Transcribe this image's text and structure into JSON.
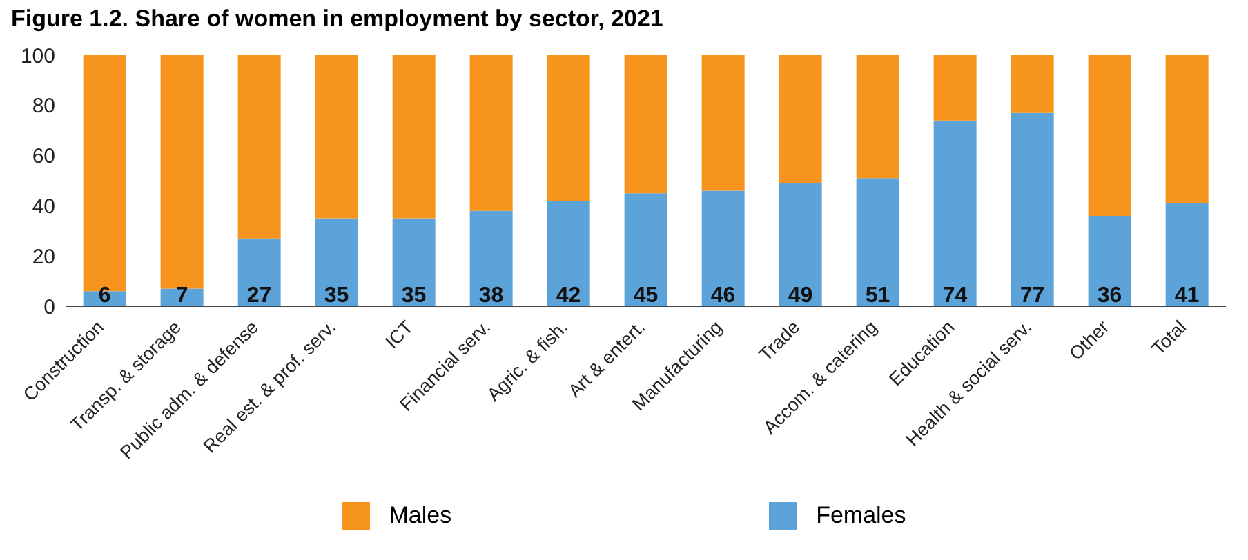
{
  "chart_data": {
    "type": "bar",
    "title": "Figure 1.2. Share of women in employment by sector, 2021",
    "stacked": true,
    "categories": [
      "Construction",
      "Transp. & storage",
      "Public adm. & defense",
      "Real est. & prof. serv.",
      "ICT",
      "Financial serv.",
      "Agric. & fish.",
      "Art & entert.",
      "Manufacturing",
      "Trade",
      "Accom. & catering",
      "Education",
      "Health & social serv.",
      "Other",
      "Total"
    ],
    "series": [
      {
        "name": "Females",
        "color": "#5ba3d9",
        "values": [
          6,
          7,
          27,
          35,
          35,
          38,
          42,
          45,
          46,
          49,
          51,
          74,
          77,
          36,
          41
        ],
        "value_labels": [
          "6",
          "7",
          "27",
          "35",
          "35",
          "38",
          "42",
          "45",
          "46",
          "49",
          "51",
          "74",
          "77",
          "36",
          "41"
        ]
      },
      {
        "name": "Males",
        "color": "#f7941d",
        "values": [
          94,
          93,
          73,
          65,
          65,
          62,
          58,
          55,
          54,
          51,
          49,
          26,
          23,
          64,
          59
        ]
      }
    ],
    "ylim": [
      0,
      100
    ],
    "yticks": [
      0,
      20,
      40,
      60,
      80,
      100
    ],
    "legend": "bottom"
  }
}
